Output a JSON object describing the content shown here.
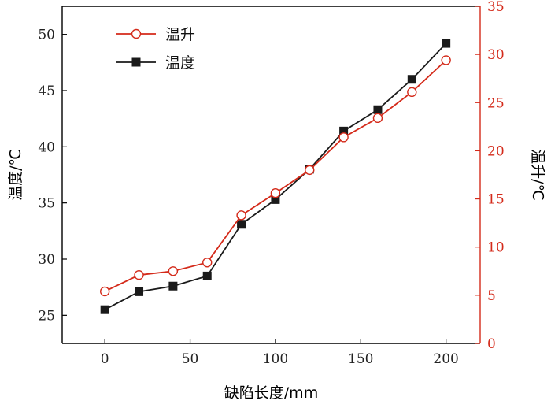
{
  "chart_data": {
    "type": "line",
    "xlabel": "缺陷长度/mm",
    "ylabel_left": "温度/℃",
    "ylabel_right": "温升/℃",
    "xlim": [
      -25,
      220
    ],
    "ylim_left": [
      22.5,
      52.5
    ],
    "ylim_right": [
      0,
      35
    ],
    "xticks": [
      0,
      50,
      100,
      150,
      200
    ],
    "yticks_left": [
      25,
      30,
      35,
      40,
      45,
      50
    ],
    "yticks_right": [
      0,
      5,
      10,
      15,
      20,
      25,
      30,
      35
    ],
    "x": [
      0,
      20,
      40,
      60,
      80,
      100,
      120,
      140,
      160,
      180,
      200
    ],
    "series": [
      {
        "name": "温升",
        "axis": "right",
        "color": "#d42a1a",
        "marker": "open-circle",
        "values": [
          5.4,
          7.1,
          7.5,
          8.4,
          13.3,
          15.6,
          18.0,
          21.4,
          23.4,
          26.1,
          29.4
        ]
      },
      {
        "name": "温度",
        "axis": "left",
        "color": "#1a1a1a",
        "marker": "filled-square",
        "values": [
          25.5,
          27.1,
          27.6,
          28.5,
          33.1,
          35.3,
          38.0,
          41.4,
          43.3,
          46.0,
          49.2
        ]
      }
    ],
    "legend_position": "top-left",
    "grid": false
  }
}
